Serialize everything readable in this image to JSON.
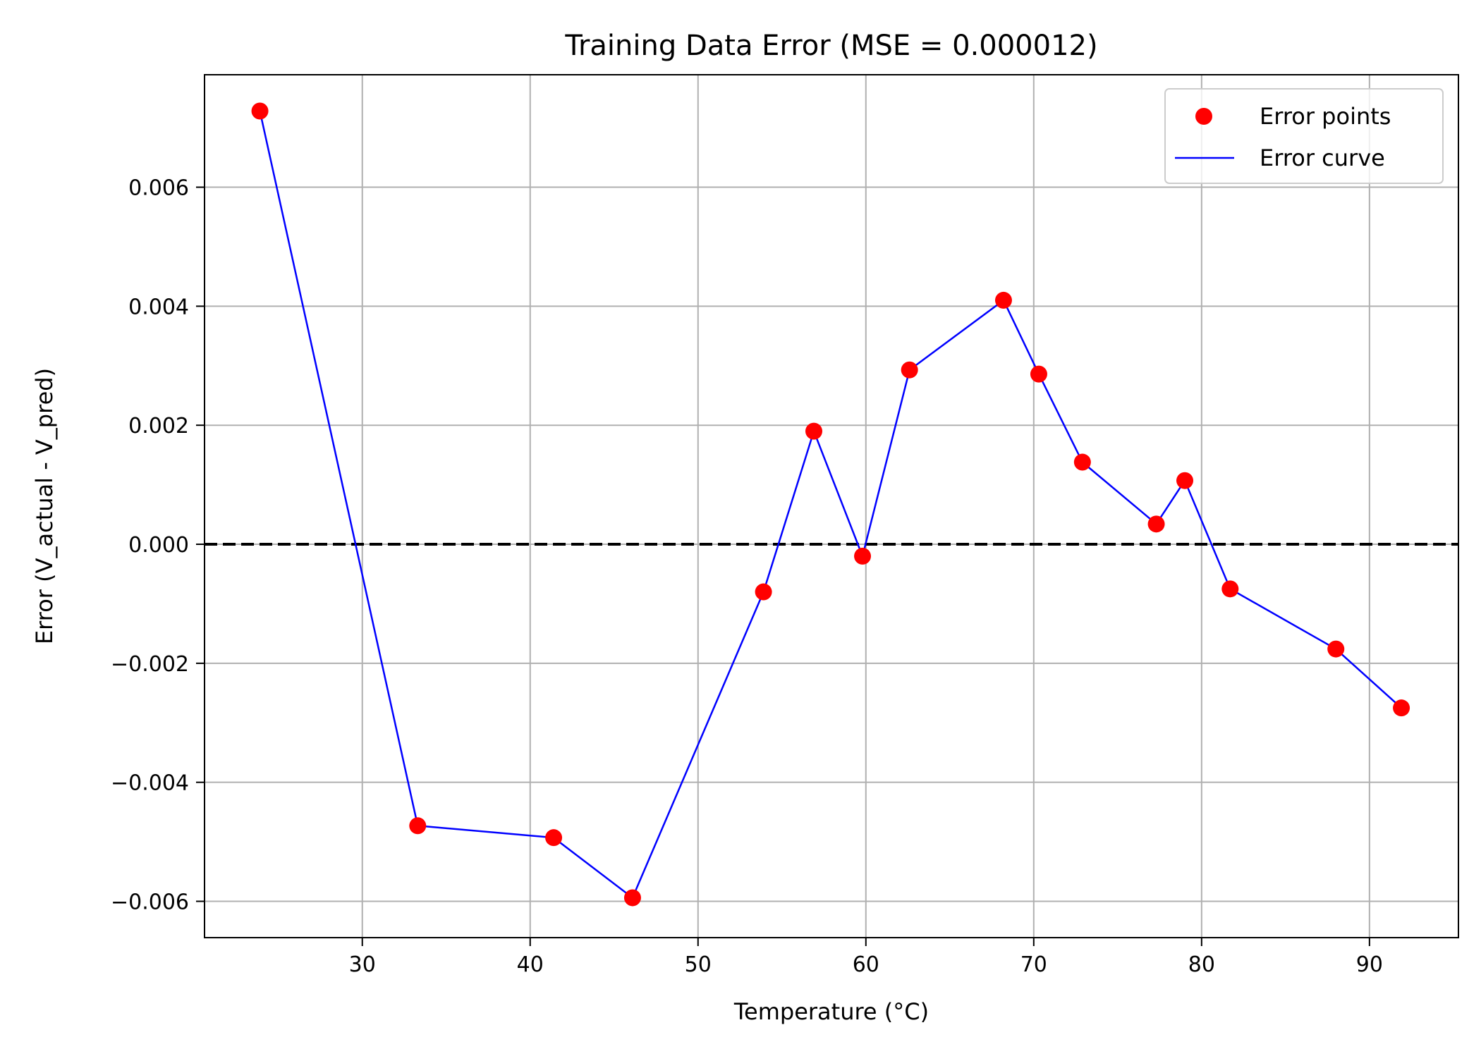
{
  "chart_data": {
    "type": "scatter",
    "title": "Training Data Error (MSE = 0.000012)",
    "xlabel": "Temperature (°C)",
    "ylabel": "Error (V_actual - V_pred)",
    "xlim": [
      20.6,
      95.3
    ],
    "ylim": [
      -0.00661,
      0.00789
    ],
    "xticks": [
      30,
      40,
      50,
      60,
      70,
      80,
      90
    ],
    "xtick_labels": [
      "30",
      "40",
      "50",
      "60",
      "70",
      "80",
      "90"
    ],
    "yticks": [
      -0.006,
      -0.004,
      -0.002,
      0.0,
      0.002,
      0.004,
      0.006
    ],
    "ytick_labels": [
      "−0.006",
      "−0.004",
      "−0.002",
      "0.000",
      "0.002",
      "0.004",
      "0.006"
    ],
    "grid": true,
    "reference_line": {
      "y": 0.0,
      "style": "dashed",
      "color": "#000000"
    },
    "legend_position": "upper right",
    "series": [
      {
        "name": "Error points",
        "kind": "scatter",
        "color": "#ff0000",
        "x": [
          23.9,
          33.3,
          41.4,
          46.1,
          53.9,
          56.9,
          59.8,
          62.6,
          68.2,
          70.3,
          72.9,
          77.3,
          79.0,
          81.7,
          88.0,
          91.9
        ],
        "y": [
          0.00728,
          -0.00473,
          -0.00493,
          -0.00594,
          -0.0008,
          0.0019,
          -0.0002,
          0.00293,
          0.0041,
          0.00286,
          0.00138,
          0.00034,
          0.00107,
          -0.00075,
          -0.00176,
          -0.00275
        ]
      },
      {
        "name": "Error curve",
        "kind": "line",
        "color": "#0000ff",
        "x": [
          23.9,
          33.3,
          41.4,
          46.1,
          53.9,
          56.9,
          59.8,
          62.6,
          68.2,
          70.3,
          72.9,
          77.3,
          79.0,
          81.7,
          88.0,
          91.9
        ],
        "y": [
          0.00728,
          -0.00473,
          -0.00493,
          -0.00594,
          -0.0008,
          0.0019,
          -0.0002,
          0.00293,
          0.0041,
          0.00286,
          0.00138,
          0.00034,
          0.00107,
          -0.00075,
          -0.00176,
          -0.00275
        ]
      }
    ]
  }
}
